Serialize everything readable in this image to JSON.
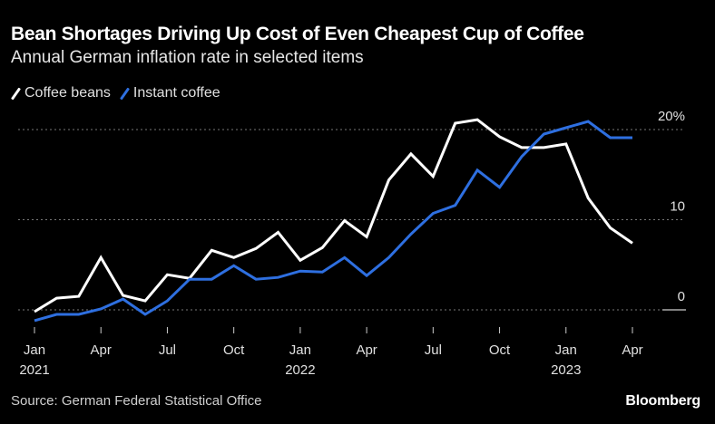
{
  "title": "Bean Shortages Driving Up Cost of Even Cheapest Cup of Coffee",
  "subtitle": "Annual German inflation rate in selected items",
  "source": "Source: German Federal Statistical Office",
  "brand": "Bloomberg",
  "colors": {
    "background": "#000000",
    "coffee_beans": "#ffffff",
    "instant_coffee": "#2e6fe0",
    "grid": "#777777"
  },
  "chart_data": {
    "type": "line",
    "title": "Bean Shortages Driving Up Cost of Even Cheapest Cup of Coffee",
    "subtitle": "Annual German inflation rate in selected items",
    "xlabel": "",
    "ylabel": "",
    "ylim": [
      -2,
      22
    ],
    "grid": true,
    "legend_position": "top-left",
    "y_ticks": [
      {
        "value": 0,
        "label": "0"
      },
      {
        "value": 10,
        "label": "10"
      },
      {
        "value": 20,
        "label": "20%"
      }
    ],
    "x_ticks": [
      {
        "index": 0,
        "label": "Jan",
        "year": "2021"
      },
      {
        "index": 3,
        "label": "Apr",
        "year": ""
      },
      {
        "index": 6,
        "label": "Jul",
        "year": ""
      },
      {
        "index": 9,
        "label": "Oct",
        "year": ""
      },
      {
        "index": 12,
        "label": "Jan",
        "year": "2022"
      },
      {
        "index": 15,
        "label": "Apr",
        "year": ""
      },
      {
        "index": 18,
        "label": "Jul",
        "year": ""
      },
      {
        "index": 21,
        "label": "Oct",
        "year": ""
      },
      {
        "index": 24,
        "label": "Jan",
        "year": "2023"
      },
      {
        "index": 27,
        "label": "Apr",
        "year": ""
      }
    ],
    "x": [
      "2021-01",
      "2021-02",
      "2021-03",
      "2021-04",
      "2021-05",
      "2021-06",
      "2021-07",
      "2021-08",
      "2021-09",
      "2021-10",
      "2021-11",
      "2021-12",
      "2022-01",
      "2022-02",
      "2022-03",
      "2022-04",
      "2022-05",
      "2022-06",
      "2022-07",
      "2022-08",
      "2022-09",
      "2022-10",
      "2022-11",
      "2022-12",
      "2023-01",
      "2023-02",
      "2023-03",
      "2023-04"
    ],
    "series": [
      {
        "name": "Coffee beans",
        "color": "#ffffff",
        "values": [
          -0.2,
          1.3,
          1.5,
          5.8,
          1.6,
          1.0,
          3.9,
          3.5,
          6.6,
          5.8,
          6.8,
          8.6,
          5.5,
          6.9,
          9.9,
          8.1,
          14.4,
          17.3,
          14.8,
          20.7,
          21.1,
          19.2,
          18.0,
          18.0,
          18.4,
          12.4,
          9.1,
          7.4
        ]
      },
      {
        "name": "Instant coffee",
        "color": "#2e6fe0",
        "values": [
          -1.2,
          -0.5,
          -0.5,
          0.1,
          1.2,
          -0.5,
          1.0,
          3.4,
          3.4,
          4.9,
          3.4,
          3.6,
          4.3,
          4.2,
          5.8,
          3.8,
          5.8,
          8.4,
          10.7,
          11.6,
          15.5,
          13.6,
          17.0,
          19.5,
          20.2,
          20.9,
          19.1,
          19.1
        ]
      }
    ]
  }
}
